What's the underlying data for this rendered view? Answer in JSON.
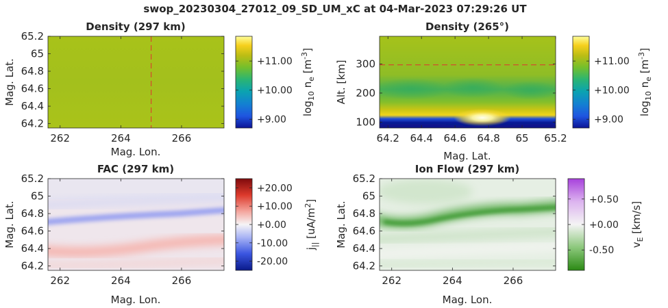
{
  "figure": {
    "suptitle": "swop_20230304_27012_09_SD_UM_xC at 04-Mar-2023 07:29:26 UT"
  },
  "chart_data": [
    {
      "type": "heatmap",
      "title": "Density (297 km)",
      "xlabel": "Mag. Lon.",
      "ylabel": "Mag. Lat.",
      "xlim": [
        261.6,
        267.4
      ],
      "ylim": [
        64.15,
        65.2
      ],
      "xticks": [
        "262",
        "264",
        "266"
      ],
      "xtick_values": [
        262,
        264,
        266
      ],
      "yticks": [
        "65.2",
        "65",
        "64.8",
        "64.6",
        "64.4",
        "64.2"
      ],
      "ytick_values": [
        65.2,
        65.0,
        64.8,
        64.6,
        64.4,
        64.2
      ],
      "colormap": "parula",
      "colorbar": {
        "label": "log10 ne [m-3]",
        "ticks": [
          "+11.00",
          "+10.00",
          "+9.00"
        ],
        "tick_values": [
          11.0,
          10.0,
          9.0
        ],
        "range": [
          8.7,
          11.85
        ]
      },
      "field": "uniform log10 ne ≈ 10.75 across the region",
      "overlay": {
        "type": "vertical-dashed-line",
        "x": 265,
        "color": "#e03030"
      }
    },
    {
      "type": "heatmap",
      "title": "Density (265°)",
      "xlabel": "Mag. Lat.",
      "ylabel": "Alt. [km]",
      "xlim": [
        64.15,
        65.2
      ],
      "ylim": [
        80,
        395
      ],
      "xticks": [
        "64.2",
        "64.4",
        "64.6",
        "64.8",
        "65",
        "65.2"
      ],
      "xtick_values": [
        64.2,
        64.4,
        64.6,
        64.8,
        65.0,
        65.2
      ],
      "yticks": [
        "300",
        "200",
        "100"
      ],
      "ytick_values": [
        300,
        200,
        100
      ],
      "colormap": "parula",
      "colorbar": {
        "label": "log10 ne [m-3]",
        "ticks": [
          "+11.00",
          "+10.00",
          "+9.00"
        ],
        "tick_values": [
          11.0,
          10.0,
          9.0
        ],
        "range": [
          8.7,
          11.85
        ]
      },
      "field": "low-density band below ~90 km, peak (~11.8) near 64.8 at ~110 km, green enhancement near 200 km",
      "overlay": {
        "type": "horizontal-dashed-line",
        "y": 297,
        "color": "#e03030"
      }
    },
    {
      "type": "heatmap",
      "title": "FAC (297 km)",
      "xlabel": "Mag. Lon.",
      "ylabel": "Mag. Lat.",
      "xlim": [
        261.6,
        267.4
      ],
      "ylim": [
        64.15,
        65.2
      ],
      "xticks": [
        "262",
        "264",
        "266"
      ],
      "xtick_values": [
        262,
        264,
        266
      ],
      "yticks": [
        "65.2",
        "65",
        "64.8",
        "64.6",
        "64.4",
        "64.2"
      ],
      "ytick_values": [
        65.2,
        65.0,
        64.8,
        64.6,
        64.4,
        64.2
      ],
      "colormap": "blue-white-red",
      "colorbar": {
        "label": "j|| [uA/m2]",
        "ticks": [
          "+20.00",
          "+10.00",
          "+0.00",
          "-10.00",
          "-20.00"
        ],
        "tick_values": [
          20,
          10,
          0,
          -10,
          -20
        ],
        "range": [
          -25,
          25
        ]
      },
      "field": "weak negative (blue) band near 64.75–64.85 rising eastward, weak positive (red) band near 64.4–64.5"
    },
    {
      "type": "heatmap",
      "title": "Ion Flow (297 km)",
      "xlabel": "Mag. Lon.",
      "ylabel": "Mag. Lat.",
      "xlim": [
        261.6,
        267.4
      ],
      "ylim": [
        64.15,
        65.2
      ],
      "xticks": [
        "262",
        "264",
        "266"
      ],
      "xtick_values": [
        262,
        264,
        266
      ],
      "yticks": [
        "65.2",
        "65",
        "64.8",
        "64.6",
        "64.4",
        "64.2"
      ],
      "ytick_values": [
        65.2,
        65.0,
        64.8,
        64.6,
        64.4,
        64.2
      ],
      "colormap": "green-white-purple",
      "colorbar": {
        "label": "vE [km/s]",
        "ticks": [
          "+0.50",
          "+0.00",
          "-0.50"
        ],
        "tick_values": [
          0.5,
          0.0,
          -0.5
        ],
        "range": [
          -0.9,
          0.9
        ]
      },
      "field": "negative (green) band near 64.75–64.85 rising eastward, pale elsewhere"
    }
  ]
}
